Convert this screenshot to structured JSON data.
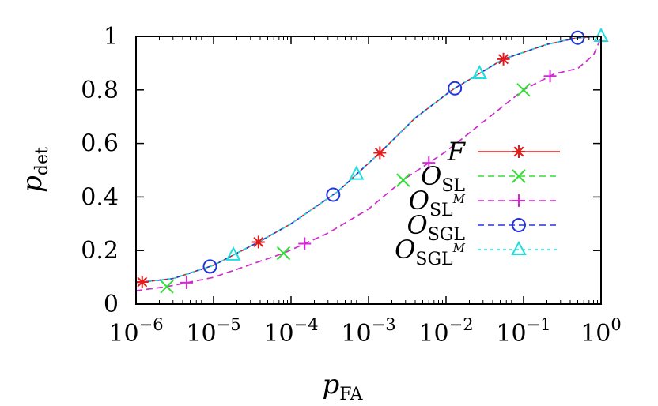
{
  "chart_data": {
    "type": "line",
    "xlabel": {
      "base": "p",
      "sub": "FA"
    },
    "ylabel": {
      "base": "p",
      "sub": "det"
    },
    "x_scale": "log",
    "xlim": [
      1e-06,
      1
    ],
    "ylim": [
      0,
      1
    ],
    "x_ticks": [
      {
        "value": 1e-06,
        "base": "10",
        "exp": "−6"
      },
      {
        "value": 1e-05,
        "base": "10",
        "exp": "−5"
      },
      {
        "value": 0.0001,
        "base": "10",
        "exp": "−4"
      },
      {
        "value": 0.001,
        "base": "10",
        "exp": "−3"
      },
      {
        "value": 0.01,
        "base": "10",
        "exp": "−2"
      },
      {
        "value": 0.1,
        "base": "10",
        "exp": "−1"
      },
      {
        "value": 1,
        "base": "10",
        "exp": "0"
      }
    ],
    "y_ticks": [
      {
        "value": 0,
        "label": "0"
      },
      {
        "value": 0.2,
        "label": "0.2"
      },
      {
        "value": 0.4,
        "label": "0.4"
      },
      {
        "value": 0.6,
        "label": "0.6"
      },
      {
        "value": 0.8,
        "label": "0.8"
      },
      {
        "value": 1,
        "label": "1"
      }
    ],
    "grid": false,
    "legend_position": "right",
    "series": [
      {
        "name": "F",
        "name_sub": "",
        "name_sup": "",
        "color": "#e41a1c",
        "dash": "solid",
        "marker": "asterisk",
        "x": [
          1e-06,
          3e-06,
          1e-05,
          4e-05,
          0.0001,
          0.0004,
          0.0014,
          0.004,
          0.012,
          0.055,
          0.2,
          0.5,
          1
        ],
        "y": [
          0.08,
          0.095,
          0.145,
          0.235,
          0.3,
          0.42,
          0.565,
          0.695,
          0.8,
          0.915,
          0.97,
          0.995,
          1.0
        ],
        "markers_x": [
          1.2e-06,
          3.8e-05,
          0.0014,
          0.055
        ]
      },
      {
        "name": "O",
        "name_sub": "SL",
        "name_sup": "",
        "color": "#33dd33",
        "dash": "dashed",
        "marker": "x",
        "x": [
          1e-06,
          2.5e-06,
          1e-05,
          8e-05,
          0.0003,
          0.001,
          0.003,
          0.01,
          0.1,
          0.25,
          0.5,
          0.8,
          1
        ],
        "y": [
          0.05,
          0.065,
          0.1,
          0.19,
          0.265,
          0.355,
          0.47,
          0.57,
          0.8,
          0.86,
          0.88,
          0.93,
          0.995
        ],
        "markers_x": [
          2.5e-06,
          8e-05,
          0.0028,
          0.1
        ]
      },
      {
        "name": "O",
        "name_sub": "SL",
        "name_sup": "M",
        "color": "#dd22dd",
        "dash": "dashed",
        "marker": "plus",
        "x": [
          1e-06,
          2.5e-06,
          1e-05,
          8e-05,
          0.0003,
          0.001,
          0.003,
          0.01,
          0.1,
          0.25,
          0.5,
          0.8,
          1
        ],
        "y": [
          0.05,
          0.065,
          0.1,
          0.19,
          0.265,
          0.355,
          0.47,
          0.57,
          0.8,
          0.86,
          0.88,
          0.93,
          0.995
        ],
        "markers_x": [
          4.5e-06,
          0.00015,
          0.006,
          0.22
        ]
      },
      {
        "name": "O",
        "name_sub": "SGL",
        "name_sup": "",
        "color": "#2233dd",
        "dash": "dashed",
        "marker": "circle",
        "x": [
          1e-06,
          3e-06,
          1e-05,
          4e-05,
          0.0001,
          0.0004,
          0.0014,
          0.004,
          0.012,
          0.055,
          0.2,
          0.5,
          1
        ],
        "y": [
          0.08,
          0.095,
          0.145,
          0.235,
          0.3,
          0.42,
          0.565,
          0.695,
          0.8,
          0.915,
          0.97,
          0.995,
          1.0
        ],
        "markers_x": [
          9e-06,
          0.00035,
          0.013,
          0.5
        ]
      },
      {
        "name": "O",
        "name_sub": "SGL",
        "name_sup": "M",
        "color": "#22dddd",
        "dash": "dotted",
        "marker": "triangle",
        "x": [
          1e-06,
          3e-06,
          1e-05,
          4e-05,
          0.0001,
          0.0004,
          0.0014,
          0.004,
          0.012,
          0.055,
          0.2,
          0.5,
          1
        ],
        "y": [
          0.08,
          0.095,
          0.145,
          0.235,
          0.3,
          0.42,
          0.565,
          0.695,
          0.8,
          0.915,
          0.97,
          0.995,
          1.0
        ],
        "markers_x": [
          1.8e-05,
          0.0007,
          0.027,
          1
        ]
      }
    ]
  }
}
